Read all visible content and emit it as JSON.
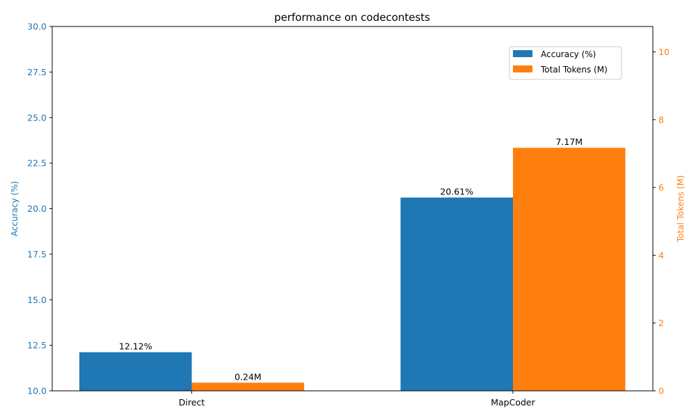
{
  "chart_data": {
    "type": "bar",
    "title": "performance on codecontests",
    "categories": [
      "Direct",
      "MapCoder"
    ],
    "y_left": {
      "label": "Accuracy (%)",
      "lim": [
        10,
        30
      ],
      "ticks": [
        10.0,
        12.5,
        15.0,
        17.5,
        20.0,
        22.5,
        25.0,
        27.5,
        30.0
      ],
      "tick_labels": [
        "10.0",
        "12.5",
        "15.0",
        "17.5",
        "20.0",
        "22.5",
        "25.0",
        "27.5",
        "30.0"
      ],
      "color": "#1f77b4"
    },
    "y_right": {
      "label": "Total Tokens (M)",
      "lim": [
        0,
        10.75
      ],
      "ticks": [
        0,
        2,
        4,
        6,
        8,
        10
      ],
      "tick_labels": [
        "0",
        "2",
        "4",
        "6",
        "8",
        "10"
      ],
      "color": "#ff7f0e"
    },
    "series": [
      {
        "name": "Accuracy (%)",
        "axis": "left",
        "color": "#1f77b4",
        "values": [
          12.12,
          20.61
        ],
        "data_labels": [
          "12.12%",
          "20.61%"
        ]
      },
      {
        "name": "Total Tokens (M)",
        "axis": "right",
        "color": "#ff7f0e",
        "values": [
          0.24,
          7.17
        ],
        "data_labels": [
          "0.24M",
          "7.17M"
        ]
      }
    ],
    "legend": {
      "placement": "top-right",
      "entries": [
        "Accuracy (%)",
        "Total Tokens (M)"
      ]
    },
    "grid": false
  }
}
